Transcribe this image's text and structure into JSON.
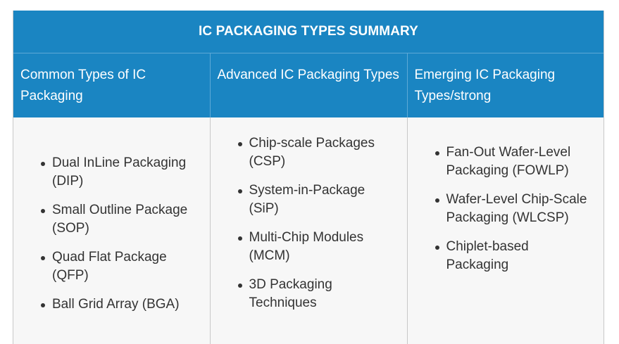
{
  "table": {
    "title": "IC PACKAGING TYPES SUMMARY",
    "columns": [
      {
        "header": "Common Types of IC Packaging",
        "items": [
          "Dual InLine Packaging (DIP)",
          "Small Outline Package (SOP)",
          "Quad Flat Package (QFP)",
          "Ball Grid Array (BGA)"
        ]
      },
      {
        "header": "Advanced IC Packaging Types",
        "items": [
          "Chip-scale Packages (CSP)",
          "System-in-Package (SiP)",
          "Multi-Chip Modules (MCM)",
          "3D Packaging Techniques"
        ]
      },
      {
        "header": "Emerging IC Packaging Types/strong",
        "items": [
          "Fan-Out Wafer-Level Packaging (FOWLP)",
          "Wafer-Level Chip-Scale Packaging (WLCSP)",
          "Chiplet-based Packaging"
        ]
      }
    ]
  },
  "colors": {
    "header_background": "#1a85c2",
    "header_text": "#ffffff",
    "body_background": "#f7f7f7",
    "body_text": "#333333"
  }
}
